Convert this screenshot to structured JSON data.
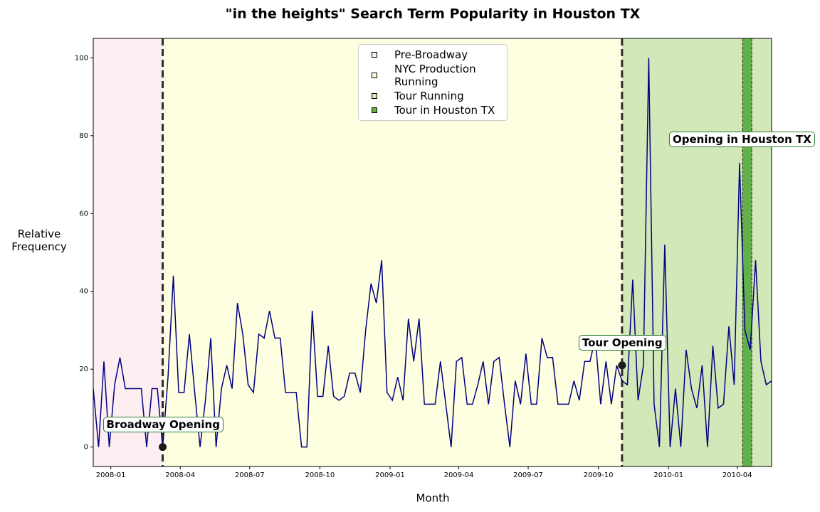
{
  "chart_data": {
    "type": "line",
    "title": "\"in the heights\" Search Term Popularity in Houston TX",
    "x_label": "Month",
    "y_label": "Relative Frequency",
    "x": [
      "2007-12-09",
      "2007-12-16",
      "2007-12-23",
      "2007-12-30",
      "2008-01-06",
      "2008-01-13",
      "2008-01-20",
      "2008-01-27",
      "2008-02-03",
      "2008-02-10",
      "2008-02-17",
      "2008-02-24",
      "2008-03-02",
      "2008-03-09",
      "2008-03-16",
      "2008-03-23",
      "2008-03-30",
      "2008-04-06",
      "2008-04-13",
      "2008-04-20",
      "2008-04-27",
      "2008-05-04",
      "2008-05-11",
      "2008-05-18",
      "2008-05-25",
      "2008-06-01",
      "2008-06-08",
      "2008-06-15",
      "2008-06-22",
      "2008-06-29",
      "2008-07-06",
      "2008-07-13",
      "2008-07-20",
      "2008-07-27",
      "2008-08-03",
      "2008-08-10",
      "2008-08-17",
      "2008-08-24",
      "2008-08-31",
      "2008-09-07",
      "2008-09-14",
      "2008-09-21",
      "2008-09-28",
      "2008-10-05",
      "2008-10-12",
      "2008-10-19",
      "2008-10-26",
      "2008-11-02",
      "2008-11-09",
      "2008-11-16",
      "2008-11-23",
      "2008-11-30",
      "2008-12-07",
      "2008-12-14",
      "2008-12-21",
      "2008-12-28",
      "2009-01-04",
      "2009-01-11",
      "2009-01-18",
      "2009-01-25",
      "2009-02-01",
      "2009-02-08",
      "2009-02-15",
      "2009-02-22",
      "2009-03-01",
      "2009-03-08",
      "2009-03-15",
      "2009-03-22",
      "2009-03-29",
      "2009-04-05",
      "2009-04-12",
      "2009-04-19",
      "2009-04-26",
      "2009-05-03",
      "2009-05-10",
      "2009-05-17",
      "2009-05-24",
      "2009-05-31",
      "2009-06-07",
      "2009-06-14",
      "2009-06-21",
      "2009-06-28",
      "2009-07-05",
      "2009-07-12",
      "2009-07-19",
      "2009-07-26",
      "2009-08-02",
      "2009-08-09",
      "2009-08-16",
      "2009-08-23",
      "2009-08-30",
      "2009-09-06",
      "2009-09-13",
      "2009-09-20",
      "2009-09-27",
      "2009-10-04",
      "2009-10-11",
      "2009-10-18",
      "2009-10-25",
      "2009-11-01",
      "2009-11-08",
      "2009-11-15",
      "2009-11-22",
      "2009-11-29",
      "2009-12-06",
      "2009-12-13",
      "2009-12-20",
      "2009-12-27",
      "2010-01-03",
      "2010-01-10",
      "2010-01-17",
      "2010-01-24",
      "2010-01-31",
      "2010-02-07",
      "2010-02-14",
      "2010-02-21",
      "2010-02-28",
      "2010-03-07",
      "2010-03-14",
      "2010-03-21",
      "2010-03-28",
      "2010-04-04",
      "2010-04-11",
      "2010-04-18",
      "2010-04-25",
      "2010-05-02",
      "2010-05-09",
      "2010-05-16"
    ],
    "series": [
      {
        "color": "#000080",
        "values": [
          15,
          0,
          22,
          0,
          16,
          23,
          15,
          15,
          15,
          15,
          0,
          15,
          15,
          0,
          18,
          44,
          14,
          14,
          29,
          14,
          0,
          12,
          28,
          0,
          15,
          21,
          15,
          37,
          29,
          16,
          14,
          29,
          28,
          35,
          28,
          28,
          14,
          14,
          14,
          0,
          0,
          35,
          13,
          13,
          26,
          13,
          12,
          13,
          19,
          19,
          14,
          30,
          42,
          37,
          48,
          14,
          12,
          18,
          12,
          33,
          22,
          33,
          11,
          11,
          11,
          22,
          11,
          0,
          22,
          23,
          11,
          11,
          16,
          22,
          11,
          22,
          23,
          11,
          0,
          17,
          11,
          24,
          11,
          11,
          28,
          23,
          23,
          11,
          11,
          11,
          17,
          12,
          22,
          22,
          28,
          11,
          22,
          11,
          21,
          17,
          16,
          43,
          12,
          21,
          100,
          11,
          0,
          52,
          0,
          15,
          0,
          25,
          15,
          10,
          21,
          0,
          26,
          10,
          11,
          31,
          16,
          73,
          30,
          25,
          48,
          22,
          16,
          17
        ]
      }
    ],
    "regions": [
      {
        "name": "Pre-Broadway",
        "color": "#fdeef2",
        "start": "2007-12-09",
        "end": "2008-03-09"
      },
      {
        "name": "NYC Production Running",
        "color": "#fefee0",
        "start": "2008-03-09",
        "end": "2009-11-01"
      },
      {
        "name": "Tour Running",
        "color": "#d2e8b9",
        "start": "2009-11-01",
        "end": "2010-05-16"
      },
      {
        "name": "Tour in Houston TX",
        "color": "#62b04a",
        "start": "2010-04-08",
        "end": "2010-04-20"
      }
    ],
    "annotations": [
      {
        "text": "Broadway Opening",
        "x": "2008-03-09",
        "y": 0
      },
      {
        "text": "Tour Opening",
        "x": "2009-11-01",
        "y": 21
      },
      {
        "text": "Opening in Houston TX"
      }
    ],
    "xlim": [
      "2007-12-09",
      "2010-05-16"
    ],
    "xticks": [
      {
        "value": "2008-01-01",
        "label": "2008-01"
      },
      {
        "value": "2008-04-01",
        "label": "2008-04"
      },
      {
        "value": "2008-07-01",
        "label": "2008-07"
      },
      {
        "value": "2008-10-01",
        "label": "2008-10"
      },
      {
        "value": "2009-01-01",
        "label": "2009-01"
      },
      {
        "value": "2009-04-01",
        "label": "2009-04"
      },
      {
        "value": "2009-07-01",
        "label": "2009-07"
      },
      {
        "value": "2009-10-01",
        "label": "2009-10"
      },
      {
        "value": "2010-01-01",
        "label": "2010-01"
      },
      {
        "value": "2010-04-01",
        "label": "2010-04"
      }
    ],
    "ylim": [
      -5,
      105
    ],
    "yticks": [
      0,
      20,
      40,
      60,
      80,
      100
    ]
  }
}
